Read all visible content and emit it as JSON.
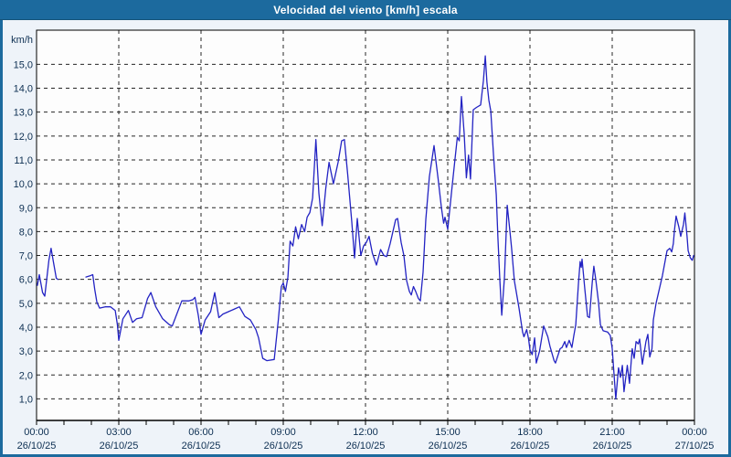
{
  "title": "Velocidad del viento [km/h] escala",
  "colors": {
    "title_bg": "#1c6a9e",
    "frame_border": "#1c6a9e",
    "frame_bg": "#eef3f9",
    "plot_bg": "#fdfdfd",
    "grid": "#262626",
    "axis": "#000000",
    "label_text": "#0d2f52",
    "series_line": "#2323c3"
  },
  "chart_data": {
    "type": "line",
    "title": "Velocidad del viento [km/h] escala",
    "unit_label": "km/h",
    "xlabel": "",
    "ylabel": "km/h",
    "ylim": [
      0,
      15.8
    ],
    "x_range_hours": [
      0,
      24
    ],
    "grid": "dashed-both-axes",
    "legend": "none",
    "yticks": {
      "values": [
        1,
        2,
        3,
        4,
        5,
        6,
        7,
        8,
        9,
        10,
        11,
        12,
        13,
        14,
        15
      ],
      "labels": [
        "1,0",
        "2,0",
        "3,0",
        "4,0",
        "5,0",
        "6,0",
        "7,0",
        "8,0",
        "9,0",
        "10,0",
        "11,0",
        "12,0",
        "13,0",
        "14,0",
        "15,0"
      ]
    },
    "xticks": {
      "major_interval_hours": 3,
      "minor_interval_hours": 1,
      "labels": [
        {
          "t": 0,
          "time": "00:00",
          "date": "26/10/25"
        },
        {
          "t": 3,
          "time": "03:00",
          "date": "26/10/25"
        },
        {
          "t": 6,
          "time": "06:00",
          "date": "26/10/25"
        },
        {
          "t": 9,
          "time": "09:00",
          "date": "26/10/25"
        },
        {
          "t": 12,
          "time": "12:00",
          "date": "26/10/25"
        },
        {
          "t": 15,
          "time": "15:00",
          "date": "26/10/25"
        },
        {
          "t": 18,
          "time": "18:00",
          "date": "26/10/25"
        },
        {
          "t": 21,
          "time": "21:00",
          "date": "26/10/25"
        },
        {
          "t": 24,
          "time": "00:00",
          "date": "27/10/25"
        }
      ]
    },
    "series": [
      {
        "name": "Velocidad del viento",
        "color": "#2323c3",
        "x_unit": "hours_since_2025-10-26T00:00",
        "y_unit": "km/h",
        "segments": [
          [
            [
              0.03,
              5.75
            ],
            [
              0.1,
              6.2
            ],
            [
              0.22,
              5.45
            ],
            [
              0.3,
              5.3
            ],
            [
              0.45,
              6.8
            ],
            [
              0.53,
              7.3
            ],
            [
              0.62,
              6.7
            ],
            [
              0.72,
              6.05
            ],
            [
              0.78,
              6.0
            ]
          ],
          [
            [
              1.8,
              6.1
            ],
            [
              1.95,
              6.15
            ],
            [
              2.05,
              6.2
            ],
            [
              2.12,
              5.6
            ],
            [
              2.2,
              5.05
            ],
            [
              2.3,
              4.8
            ],
            [
              2.5,
              4.85
            ],
            [
              2.7,
              4.85
            ],
            [
              2.87,
              4.7
            ],
            [
              2.95,
              4.1
            ],
            [
              3.0,
              3.45
            ],
            [
              3.15,
              4.35
            ],
            [
              3.35,
              4.7
            ],
            [
              3.5,
              4.2
            ],
            [
              3.65,
              4.35
            ],
            [
              3.85,
              4.4
            ],
            [
              4.05,
              5.2
            ],
            [
              4.17,
              5.45
            ],
            [
              4.35,
              4.85
            ],
            [
              4.6,
              4.35
            ],
            [
              4.85,
              4.1
            ],
            [
              4.95,
              4.05
            ],
            [
              5.1,
              4.5
            ],
            [
              5.3,
              5.1
            ],
            [
              5.55,
              5.1
            ],
            [
              5.7,
              5.15
            ],
            [
              5.78,
              5.25
            ],
            [
              5.9,
              4.5
            ],
            [
              6.0,
              3.7
            ],
            [
              6.15,
              4.3
            ],
            [
              6.35,
              4.65
            ],
            [
              6.5,
              5.45
            ],
            [
              6.65,
              4.4
            ],
            [
              6.8,
              4.55
            ],
            [
              7.0,
              4.65
            ],
            [
              7.2,
              4.75
            ],
            [
              7.4,
              4.85
            ],
            [
              7.6,
              4.45
            ],
            [
              7.8,
              4.3
            ],
            [
              8.0,
              3.9
            ],
            [
              8.1,
              3.55
            ],
            [
              8.25,
              2.7
            ],
            [
              8.4,
              2.6
            ],
            [
              8.67,
              2.65
            ],
            [
              8.82,
              4.3
            ],
            [
              8.93,
              5.7
            ],
            [
              9.0,
              5.85
            ],
            [
              9.08,
              5.5
            ],
            [
              9.17,
              6.1
            ],
            [
              9.25,
              7.6
            ],
            [
              9.35,
              7.4
            ],
            [
              9.45,
              8.2
            ],
            [
              9.55,
              7.7
            ],
            [
              9.67,
              8.3
            ],
            [
              9.78,
              8.0
            ],
            [
              9.87,
              8.6
            ],
            [
              9.97,
              8.8
            ],
            [
              10.07,
              9.4
            ],
            [
              10.19,
              11.85
            ],
            [
              10.3,
              9.6
            ],
            [
              10.42,
              8.25
            ],
            [
              10.55,
              9.8
            ],
            [
              10.67,
              10.9
            ],
            [
              10.83,
              10.0
            ],
            [
              11.0,
              10.9
            ],
            [
              11.13,
              11.8
            ],
            [
              11.23,
              11.85
            ],
            [
              11.35,
              10.4
            ],
            [
              11.5,
              8.4
            ],
            [
              11.6,
              6.9
            ],
            [
              11.7,
              8.55
            ],
            [
              11.83,
              7.0
            ],
            [
              11.93,
              7.4
            ],
            [
              12.03,
              7.55
            ],
            [
              12.13,
              7.8
            ],
            [
              12.25,
              7.1
            ],
            [
              12.4,
              6.6
            ],
            [
              12.55,
              7.25
            ],
            [
              12.67,
              7.0
            ],
            [
              12.77,
              6.95
            ],
            [
              12.9,
              7.5
            ],
            [
              13.1,
              8.5
            ],
            [
              13.17,
              8.55
            ],
            [
              13.3,
              7.55
            ],
            [
              13.4,
              7.0
            ],
            [
              13.5,
              5.95
            ],
            [
              13.6,
              5.5
            ],
            [
              13.67,
              5.35
            ],
            [
              13.75,
              5.7
            ],
            [
              13.83,
              5.5
            ],
            [
              13.93,
              5.2
            ],
            [
              14.0,
              5.1
            ],
            [
              14.1,
              6.3
            ],
            [
              14.2,
              8.5
            ],
            [
              14.33,
              10.3
            ],
            [
              14.5,
              11.6
            ],
            [
              14.65,
              10.2
            ],
            [
              14.77,
              9.0
            ],
            [
              14.85,
              8.35
            ],
            [
              14.9,
              8.6
            ],
            [
              15.0,
              8.1
            ],
            [
              15.17,
              10.0
            ],
            [
              15.35,
              11.95
            ],
            [
              15.42,
              11.8
            ],
            [
              15.5,
              13.65
            ],
            [
              15.6,
              12.1
            ],
            [
              15.68,
              10.25
            ],
            [
              15.76,
              11.2
            ],
            [
              15.83,
              10.2
            ],
            [
              15.93,
              13.1
            ],
            [
              16.05,
              13.2
            ],
            [
              16.2,
              13.3
            ],
            [
              16.3,
              14.3
            ],
            [
              16.37,
              15.35
            ],
            [
              16.43,
              14.25
            ],
            [
              16.5,
              13.5
            ],
            [
              16.57,
              13.05
            ],
            [
              16.67,
              11.2
            ],
            [
              16.77,
              9.55
            ],
            [
              16.83,
              7.75
            ],
            [
              16.9,
              6.0
            ],
            [
              16.97,
              4.5
            ],
            [
              17.07,
              6.1
            ],
            [
              17.17,
              9.1
            ],
            [
              17.27,
              8.0
            ],
            [
              17.33,
              7.3
            ],
            [
              17.43,
              5.95
            ],
            [
              17.6,
              4.8
            ],
            [
              17.73,
              3.8
            ],
            [
              17.78,
              3.6
            ],
            [
              17.88,
              3.9
            ],
            [
              17.95,
              3.5
            ],
            [
              18.0,
              3.05
            ],
            [
              18.08,
              2.85
            ],
            [
              18.17,
              3.55
            ],
            [
              18.23,
              2.5
            ],
            [
              18.35,
              3.0
            ],
            [
              18.5,
              4.05
            ],
            [
              18.65,
              3.6
            ],
            [
              18.73,
              3.2
            ],
            [
              18.88,
              2.6
            ],
            [
              18.93,
              2.5
            ],
            [
              19.1,
              3.1
            ],
            [
              19.17,
              3.15
            ],
            [
              19.27,
              3.4
            ],
            [
              19.33,
              3.15
            ],
            [
              19.43,
              3.45
            ],
            [
              19.53,
              3.15
            ],
            [
              19.6,
              3.65
            ],
            [
              19.67,
              4.1
            ],
            [
              19.77,
              5.85
            ],
            [
              19.83,
              6.75
            ],
            [
              19.87,
              6.5
            ],
            [
              19.9,
              6.85
            ],
            [
              20.0,
              5.6
            ],
            [
              20.1,
              4.45
            ],
            [
              20.17,
              4.4
            ],
            [
              20.27,
              5.85
            ],
            [
              20.33,
              6.55
            ],
            [
              20.4,
              6.0
            ],
            [
              20.5,
              5.05
            ],
            [
              20.57,
              4.1
            ],
            [
              20.67,
              3.85
            ],
            [
              20.83,
              3.8
            ],
            [
              20.93,
              3.65
            ],
            [
              21.0,
              3.1
            ],
            [
              21.13,
              1.0
            ],
            [
              21.23,
              2.3
            ],
            [
              21.3,
              1.9
            ],
            [
              21.37,
              2.4
            ],
            [
              21.43,
              1.3
            ],
            [
              21.55,
              2.4
            ],
            [
              21.63,
              1.65
            ],
            [
              21.73,
              3.1
            ],
            [
              21.8,
              2.7
            ],
            [
              21.87,
              3.4
            ],
            [
              21.95,
              3.3
            ],
            [
              22.0,
              3.5
            ],
            [
              22.1,
              2.45
            ],
            [
              22.23,
              3.4
            ],
            [
              22.3,
              3.7
            ],
            [
              22.37,
              2.75
            ],
            [
              22.45,
              3.1
            ],
            [
              22.5,
              4.3
            ],
            [
              22.6,
              5.0
            ],
            [
              22.73,
              5.65
            ],
            [
              22.83,
              6.15
            ],
            [
              23.0,
              7.2
            ],
            [
              23.1,
              7.3
            ],
            [
              23.17,
              7.15
            ],
            [
              23.23,
              7.5
            ],
            [
              23.27,
              8.05
            ],
            [
              23.33,
              8.65
            ],
            [
              23.43,
              8.2
            ],
            [
              23.5,
              7.8
            ],
            [
              23.6,
              8.3
            ],
            [
              23.65,
              8.78
            ],
            [
              23.73,
              7.8
            ],
            [
              23.77,
              7.2
            ],
            [
              23.85,
              6.9
            ],
            [
              23.92,
              6.8
            ],
            [
              23.97,
              7.0
            ]
          ]
        ]
      }
    ]
  }
}
